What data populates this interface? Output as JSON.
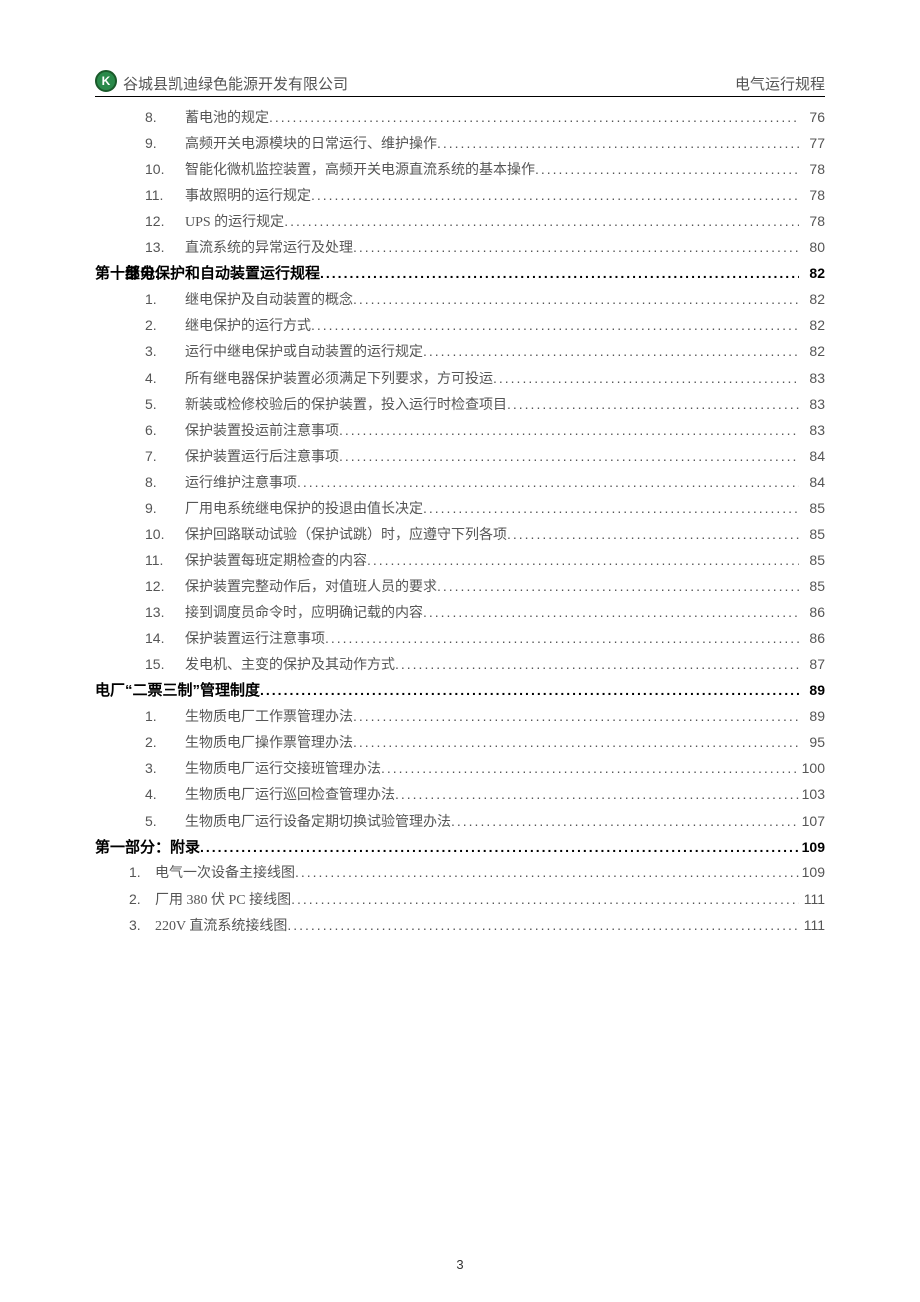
{
  "header": {
    "company": "谷城县凯迪绿色能源开发有限公司",
    "doc_title": "电气运行规程",
    "logo_letter": "K"
  },
  "page_number": "3",
  "sections": [
    {
      "type": "sub",
      "items": [
        {
          "num": "8.",
          "title": "蓄电池的规定",
          "page": "76"
        },
        {
          "num": "9.",
          "title": "高频开关电源模块的日常运行、维护操作",
          "page": "77"
        },
        {
          "num": "10.",
          "title": "智能化微机监控装置，高频开关电源直流系统的基本操作",
          "page": "78"
        },
        {
          "num": "11.",
          "title": "事故照明的运行规定",
          "page": "78"
        },
        {
          "num": "12.",
          "title": "UPS 的运行规定",
          "page": "78"
        },
        {
          "num": "13.",
          "title": "直流系统的异常运行及处理",
          "page": "80"
        }
      ]
    },
    {
      "type": "section",
      "heading": {
        "num": "第十部分.",
        "title": "　　继电保护和自动装置运行规程 ",
        "page": "82"
      },
      "items": [
        {
          "num": "1.",
          "title": "继电保护及自动装置的概念",
          "page": "82"
        },
        {
          "num": "2.",
          "title": "继电保护的运行方式",
          "page": "82"
        },
        {
          "num": "3.",
          "title": "运行中继电保护或自动装置的运行规定",
          "page": "82"
        },
        {
          "num": "4.",
          "title": "所有继电器保护装置必须满足下列要求，方可投运",
          "page": "83"
        },
        {
          "num": "5.",
          "title": "新装或检修校验后的保护装置，投入运行时检查项目",
          "page": "83"
        },
        {
          "num": "6.",
          "title": "保护装置投运前注意事项",
          "page": "83"
        },
        {
          "num": "7.",
          "title": "保护装置运行后注意事项",
          "page": "84"
        },
        {
          "num": "8.",
          "title": "运行维护注意事项",
          "page": "84"
        },
        {
          "num": "9.",
          "title": "厂用电系统继电保护的投退由值长决定",
          "page": "85"
        },
        {
          "num": "10.",
          "title": "保护回路联动试验（保护试跳）时，应遵守下列各项",
          "page": "85"
        },
        {
          "num": "11.",
          "title": "保护装置每班定期检查的内容",
          "page": "85"
        },
        {
          "num": "12.",
          "title": "保护装置完整动作后，对值班人员的要求",
          "page": "85"
        },
        {
          "num": "13.",
          "title": "接到调度员命令时，应明确记载的内容",
          "page": "86"
        },
        {
          "num": "14.",
          "title": "保护装置运行注意事项",
          "page": "86"
        },
        {
          "num": "15.",
          "title": "发电机、主变的保护及其动作方式",
          "page": "87"
        }
      ]
    },
    {
      "type": "section",
      "heading": {
        "num": "",
        "title": "电厂“二票三制”管理制度 ",
        "page": "89"
      },
      "items": [
        {
          "num": "1.",
          "title": "生物质电厂工作票管理办法",
          "page": "89"
        },
        {
          "num": "2.",
          "title": "生物质电厂操作票管理办法",
          "page": "95"
        },
        {
          "num": "3.",
          "title": "生物质电厂运行交接班管理办法",
          "page": "100"
        },
        {
          "num": "4.",
          "title": "生物质电厂运行巡回检查管理办法",
          "page": "103"
        },
        {
          "num": "5.",
          "title": "生物质电厂运行设备定期切换试验管理办法",
          "page": "107"
        }
      ]
    },
    {
      "type": "section",
      "heading": {
        "num": "",
        "title": "第一部分：附录",
        "page": "109"
      },
      "sub_class": "attach",
      "items": [
        {
          "num": "1.",
          "title": "电气一次设备主接线图",
          "page": "109"
        },
        {
          "num": "2.",
          "title": "厂用 380 伏 PC 接线图",
          "page": "111"
        },
        {
          "num": "3.",
          "title": "220V 直流系统接线图",
          "page": "111"
        }
      ]
    }
  ]
}
